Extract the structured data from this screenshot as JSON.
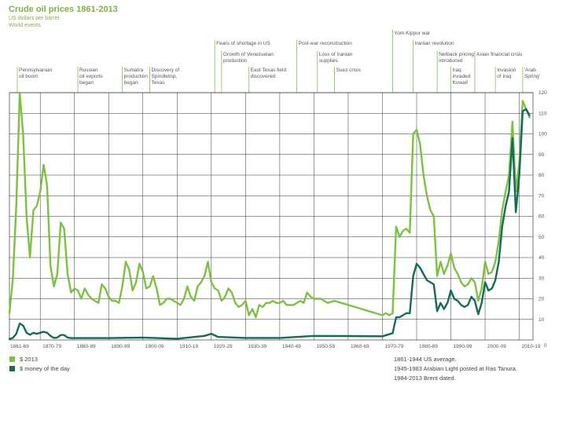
{
  "chart_data": {
    "type": "line",
    "title": "Crude oil prices 1861-2013",
    "subtitle_units": "US dollars per barrel",
    "subtitle_events": "World events",
    "xlim": [
      1861,
      2014
    ],
    "ylim": [
      0,
      120
    ],
    "x_tick_labels": [
      "1861-69",
      "1870-79",
      "1880-89",
      "1890-99",
      "1900-09",
      "1910-19",
      "1920-29",
      "1930-39",
      "1940-49",
      "1950-59",
      "1960-69",
      "1970-79",
      "1980-89",
      "1990-99",
      "2000-09",
      "2010-19"
    ],
    "y_ticks": [
      10,
      20,
      30,
      40,
      50,
      60,
      70,
      80,
      90,
      100,
      110,
      120
    ],
    "y_zero_label": "0",
    "events": [
      {
        "year": 1861,
        "row": 2,
        "lines": [
          "Pennsylvanian",
          "oil boom"
        ]
      },
      {
        "year": 1881,
        "row": 2,
        "lines": [
          "Russian",
          "oil exports",
          "began"
        ]
      },
      {
        "year": 1894,
        "row": 2,
        "lines": [
          "Sumatra",
          "production",
          "began"
        ]
      },
      {
        "year": 1902,
        "row": 2,
        "lines": [
          "Discovery of",
          "Spindletop,",
          "Texas"
        ]
      },
      {
        "year": 1921,
        "row": 0,
        "lines": [
          "Fears of shortage in US"
        ]
      },
      {
        "year": 1923,
        "row": 1,
        "lines": [
          "Growth of Venezuelan",
          "production"
        ]
      },
      {
        "year": 1931,
        "row": 2,
        "lines": [
          "East Texas field",
          "discovered"
        ]
      },
      {
        "year": 1945,
        "row": 0,
        "lines": [
          "Post-war reconstruction"
        ]
      },
      {
        "year": 1951,
        "row": 1,
        "lines": [
          "Loss of Iranian",
          "supplies"
        ]
      },
      {
        "year": 1956,
        "row": 2,
        "lines": [
          "Suez crisis"
        ]
      },
      {
        "year": 1973,
        "row": -1,
        "lines": [
          "Yom Kippur war"
        ]
      },
      {
        "year": 1979,
        "row": 0,
        "lines": [
          "Iranian revolution"
        ]
      },
      {
        "year": 1986,
        "row": 1,
        "lines": [
          "Netback pricing",
          "introduced"
        ]
      },
      {
        "year": 1990,
        "row": 2,
        "lines": [
          "Iraq",
          "invaded",
          "Kuwait"
        ]
      },
      {
        "year": 1997,
        "row": 1,
        "lines": [
          "Asian financial crisis"
        ]
      },
      {
        "year": 2003,
        "row": 2,
        "lines": [
          "Invasion",
          "of Iraq"
        ]
      },
      {
        "year": 2011,
        "row": 2,
        "lines": [
          "'Arab",
          "Spring'"
        ]
      }
    ],
    "series": [
      {
        "name": "$ 2013",
        "color": "#7dc143",
        "x": [
          1861,
          1862,
          1863,
          1864,
          1865,
          1866,
          1867,
          1868,
          1869,
          1870,
          1871,
          1872,
          1873,
          1874,
          1875,
          1876,
          1877,
          1878,
          1879,
          1880,
          1881,
          1882,
          1883,
          1884,
          1885,
          1886,
          1887,
          1888,
          1889,
          1890,
          1891,
          1892,
          1893,
          1894,
          1895,
          1896,
          1897,
          1898,
          1899,
          1900,
          1901,
          1902,
          1903,
          1904,
          1905,
          1906,
          1907,
          1908,
          1909,
          1910,
          1911,
          1912,
          1913,
          1914,
          1915,
          1916,
          1917,
          1918,
          1919,
          1920,
          1921,
          1922,
          1923,
          1924,
          1925,
          1926,
          1927,
          1928,
          1929,
          1930,
          1931,
          1932,
          1933,
          1934,
          1935,
          1936,
          1937,
          1938,
          1939,
          1940,
          1941,
          1942,
          1943,
          1944,
          1945,
          1946,
          1947,
          1948,
          1949,
          1950,
          1952,
          1954,
          1956,
          1958,
          1960,
          1962,
          1964,
          1966,
          1968,
          1970,
          1971,
          1972,
          1973,
          1974,
          1975,
          1976,
          1977,
          1978,
          1979,
          1980,
          1981,
          1982,
          1983,
          1984,
          1985,
          1986,
          1987,
          1988,
          1989,
          1990,
          1991,
          1992,
          1993,
          1994,
          1995,
          1996,
          1997,
          1998,
          1999,
          2000,
          2001,
          2002,
          2003,
          2004,
          2005,
          2006,
          2007,
          2008,
          2009,
          2010,
          2011,
          2012,
          2013
        ],
        "values": [
          13,
          30,
          65,
          120,
          100,
          60,
          40,
          63,
          65,
          72,
          85,
          75,
          36,
          26,
          32,
          57,
          54,
          32,
          23,
          25,
          24,
          20,
          25,
          22,
          20,
          19,
          18,
          27,
          25,
          21,
          19,
          19,
          18,
          26,
          38,
          34,
          24,
          28,
          37,
          33,
          25,
          26,
          31,
          25,
          17,
          18,
          20,
          20,
          19,
          18,
          17,
          20,
          26,
          21,
          19,
          26,
          28,
          31,
          38,
          28,
          25,
          24,
          19,
          21,
          25,
          23,
          18,
          16,
          17,
          19,
          12,
          15,
          11,
          17,
          16,
          18,
          18,
          19,
          18,
          18,
          19,
          17,
          17,
          17,
          18,
          19,
          18,
          23,
          21,
          20,
          20,
          18,
          19,
          18,
          17,
          16,
          15,
          14,
          13,
          12,
          13,
          12,
          13,
          55,
          50,
          53,
          54,
          52,
          100,
          102,
          95,
          80,
          70,
          63,
          60,
          31,
          38,
          32,
          36,
          42,
          35,
          32,
          28,
          26,
          27,
          30,
          28,
          19,
          25,
          38,
          32,
          33,
          38,
          48,
          63,
          72,
          80,
          106,
          72,
          86,
          116,
          112,
          108
        ]
      },
      {
        "name": "$ money of the day",
        "color": "#136b5a",
        "x": [
          1861,
          1862,
          1863,
          1864,
          1865,
          1866,
          1867,
          1868,
          1869,
          1870,
          1871,
          1872,
          1873,
          1874,
          1875,
          1876,
          1877,
          1878,
          1879,
          1880,
          1890,
          1900,
          1910,
          1918,
          1920,
          1922,
          1930,
          1940,
          1950,
          1960,
          1970,
          1973,
          1974,
          1975,
          1976,
          1977,
          1978,
          1979,
          1980,
          1981,
          1982,
          1983,
          1984,
          1985,
          1986,
          1987,
          1988,
          1989,
          1990,
          1991,
          1992,
          1993,
          1994,
          1995,
          1996,
          1997,
          1998,
          1999,
          2000,
          2001,
          2002,
          2003,
          2004,
          2005,
          2006,
          2007,
          2008,
          2009,
          2010,
          2011,
          2012,
          2013
        ],
        "values": [
          0.5,
          1,
          3,
          8,
          7,
          3.5,
          2.5,
          3.5,
          3,
          3.5,
          4,
          3.5,
          2,
          1,
          1.2,
          2.4,
          2.4,
          1.2,
          0.9,
          0.9,
          0.9,
          1.2,
          0.6,
          2,
          3,
          1.5,
          1,
          1,
          2,
          1.9,
          1.8,
          3.3,
          11,
          11,
          12,
          13,
          13,
          31,
          37,
          35,
          32,
          29,
          28,
          27,
          14,
          18,
          15,
          18,
          24,
          20,
          19,
          17,
          16,
          17,
          21,
          19,
          12.5,
          18,
          28,
          24,
          25,
          29,
          38,
          55,
          65,
          72,
          98,
          62,
          80,
          111,
          112,
          109
        ]
      }
    ],
    "legend": [
      "$ 2013",
      "$ money of the day"
    ],
    "notes": [
      "1861-1944 US average.",
      "1945-1983 Arabian Light posted at Ras Tanura.",
      "1984-2013 Brent dated."
    ]
  }
}
